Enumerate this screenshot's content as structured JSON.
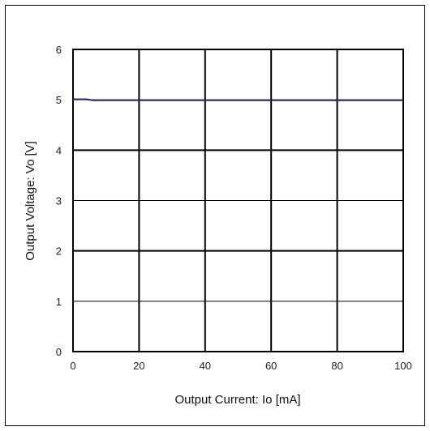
{
  "chart_data": {
    "type": "line",
    "xlabel": "Output Current: Io [mA]",
    "ylabel": "Output Voltage: Vo [V]",
    "xlim": [
      0,
      100
    ],
    "ylim": [
      0,
      6
    ],
    "x_ticks": [
      0,
      20,
      40,
      60,
      80,
      100
    ],
    "y_ticks": [
      0,
      1,
      2,
      3,
      4,
      5,
      6
    ],
    "x_tick_labels": [
      "0",
      "20",
      "40",
      "60",
      "80",
      "100"
    ],
    "y_tick_labels": [
      "0",
      "1",
      "2",
      "3",
      "4",
      "5",
      "6"
    ],
    "grid": true,
    "series": [
      {
        "color": "#1f2a6b",
        "x": [
          0,
          2,
          4,
          5,
          6,
          10,
          20,
          40,
          60,
          80,
          100
        ],
        "y": [
          5.01,
          5.01,
          5.01,
          5.0,
          4.99,
          4.99,
          4.99,
          4.99,
          4.99,
          4.99,
          4.99
        ]
      }
    ]
  }
}
